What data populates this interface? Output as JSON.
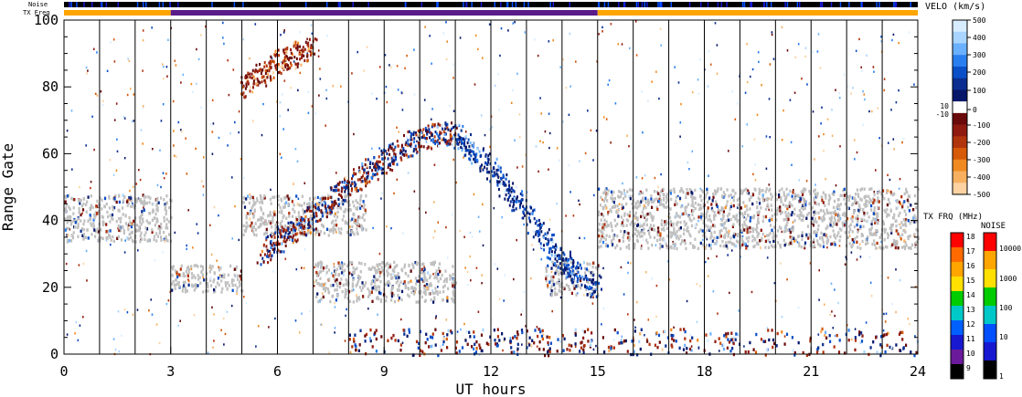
{
  "strips": {
    "noise_label": "Noise",
    "txfreq_label": "TX Freq",
    "txfreq_segments": [
      {
        "start": 0,
        "end": 3,
        "color": "#ffa500"
      },
      {
        "start": 3,
        "end": 15,
        "color": "#5a1c8a"
      },
      {
        "start": 15,
        "end": 24,
        "color": "#ffa500"
      }
    ]
  },
  "legend": {
    "velocity": {
      "title": "VELO (km/s)",
      "ticks": [
        "500",
        "400",
        "300",
        "200",
        "100",
        "10",
        "0",
        "-10",
        "-100",
        "-200",
        "-300",
        "-400",
        "-500"
      ],
      "colors_top_to_bottom": [
        "#d8ecff",
        "#a8d4ff",
        "#6ab0ff",
        "#2a7ff0",
        "#0b4fc8",
        "#0a2d8f",
        "#06176a",
        "#ffffff",
        "#6a0a0a",
        "#8f1a10",
        "#b0340c",
        "#d65a08",
        "#f08a20",
        "#f7b060",
        "#fbd2a0"
      ]
    },
    "txfreq": {
      "title": "TX FRQ (MHz)",
      "ticks": [
        "18",
        "17",
        "16",
        "15",
        "14",
        "13",
        "12",
        "11",
        "10",
        "9"
      ],
      "colors_top_to_bottom": [
        "#ff0000",
        "#ff6a00",
        "#ffa500",
        "#ffe000",
        "#00cc00",
        "#00c8c8",
        "#0060ff",
        "#1818d0",
        "#6a1a9a",
        "#000000"
      ]
    },
    "noise": {
      "title": "NOISE",
      "ticks": [
        "10000",
        "1000",
        "100",
        "10",
        "1"
      ],
      "colors_top_to_bottom": [
        "#ff0000",
        "#ffa500",
        "#ffe000",
        "#00cc00",
        "#00c8c8",
        "#0050ff",
        "#1818d0",
        "#000000"
      ]
    }
  },
  "chart_data": {
    "type": "scatter",
    "xlabel": "UT hours",
    "ylabel": "Range Gate",
    "xlim": [
      0,
      24
    ],
    "ylim": [
      0,
      100
    ],
    "xticks": [
      0,
      3,
      6,
      9,
      12,
      15,
      18,
      21,
      24
    ],
    "yticks": [
      0,
      20,
      40,
      60,
      80,
      100
    ],
    "hour_gridlines": true,
    "color_variable": "line-of-sight velocity (km/s)",
    "ground_scatter_color": "#c0c0c0",
    "echo_bands": [
      {
        "name": "ground scatter",
        "x": [
          0,
          3
        ],
        "gate_range": [
          34,
          48
        ],
        "velocity": "ground"
      },
      {
        "name": "ground scatter",
        "x": [
          3,
          5
        ],
        "gate_range": [
          19,
          27
        ],
        "velocity": "ground"
      },
      {
        "name": "ground scatter",
        "x": [
          5,
          8.5
        ],
        "gate_range": [
          36,
          48
        ],
        "velocity": "ground"
      },
      {
        "name": "ground scatter",
        "x": [
          7,
          11
        ],
        "gate_range": [
          16,
          28
        ],
        "velocity": "ground"
      },
      {
        "name": "ground scatter",
        "x": [
          13.5,
          15
        ],
        "gate_range": [
          18,
          28
        ],
        "velocity": "ground"
      },
      {
        "name": "ground scatter",
        "x": [
          15,
          24
        ],
        "gate_range": [
          32,
          50
        ],
        "velocity": "ground"
      },
      {
        "name": "ionospheric rising arc",
        "points": [
          [
            5.5,
            30
          ],
          [
            7,
            42
          ],
          [
            8.5,
            55
          ],
          [
            10,
            65
          ],
          [
            11,
            67
          ]
        ],
        "velocity": "mixed"
      },
      {
        "name": "ionospheric descending arc",
        "points": [
          [
            11,
            66
          ],
          [
            12,
            56
          ],
          [
            13,
            42
          ],
          [
            14,
            28
          ],
          [
            15,
            20
          ]
        ],
        "velocity": "positive"
      },
      {
        "name": "far-range patch",
        "points": [
          [
            5,
            80
          ],
          [
            6,
            88
          ],
          [
            7,
            92
          ]
        ],
        "velocity": "negative"
      },
      {
        "name": "near-range echoes",
        "x": [
          8,
          24
        ],
        "gate_range": [
          0,
          8
        ],
        "velocity": "mixed"
      }
    ]
  }
}
